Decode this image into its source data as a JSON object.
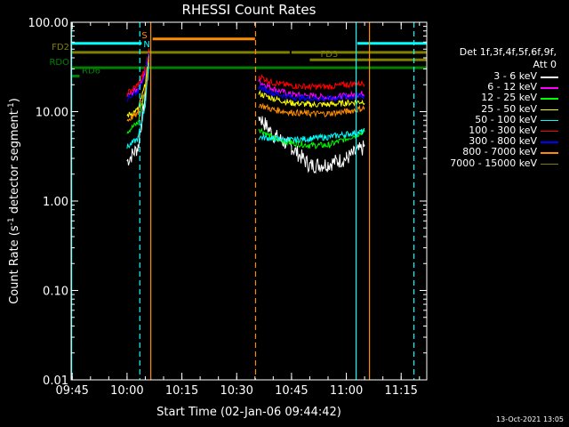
{
  "chart_data": {
    "type": "line",
    "title": "RHESSI Count Rates",
    "xlabel": "Start Time (02-Jan-06 09:44:42)",
    "ylabel_parts": [
      "Count Rate (s",
      "-1",
      " detector segment",
      "-1",
      ")"
    ],
    "yscale": "log",
    "ylim": [
      0.01,
      100
    ],
    "xlim": [
      "09:44:42",
      "11:22:00"
    ],
    "x_ticks": [
      "09:45",
      "10:00",
      "10:15",
      "10:30",
      "10:45",
      "11:00",
      "11:15"
    ],
    "y_ticks": [
      "0.01",
      "0.10",
      "1.00",
      "10.00",
      "100.00"
    ],
    "legend_header": [
      "Det 1f,3f,4f,5f,6f,9f,",
      "Att 0"
    ],
    "legend_position": "right",
    "series": [
      {
        "name": "3 - 6 keV",
        "color": "#ffffff",
        "x": [
          "10:00",
          "10:03",
          "10:05",
          "10:06",
          "10:36",
          "10:40",
          "10:45",
          "10:50",
          "10:55",
          "11:00",
          "11:05"
        ],
        "y": [
          2.8,
          4.0,
          15,
          40,
          9,
          5.5,
          4,
          2.5,
          2.6,
          3,
          4
        ]
      },
      {
        "name": "6 - 12 keV",
        "color": "#ff00ff",
        "x": [
          "10:00",
          "10:03",
          "10:05",
          "10:06",
          "10:36",
          "10:40",
          "10:45",
          "10:50",
          "10:55",
          "11:00",
          "11:05"
        ],
        "y": [
          15,
          18,
          28,
          45,
          22,
          18,
          15.5,
          15,
          14.5,
          15,
          16
        ]
      },
      {
        "name": "12 - 25 keV",
        "color": "#00ff00",
        "x": [
          "10:00",
          "10:03",
          "10:05",
          "10:06",
          "10:36",
          "10:40",
          "10:45",
          "10:50",
          "10:55",
          "11:00",
          "11:05"
        ],
        "y": [
          6,
          7.5,
          18,
          40,
          6.5,
          5,
          4.5,
          4.2,
          4.2,
          5,
          6
        ]
      },
      {
        "name": "25 - 50 keV",
        "color": "#ffff00",
        "x": [
          "10:00",
          "10:03",
          "10:05",
          "10:06",
          "10:36",
          "10:40",
          "10:45",
          "10:50",
          "10:55",
          "11:00",
          "11:05"
        ],
        "y": [
          9,
          10.5,
          20,
          42,
          16,
          14,
          12.5,
          12,
          12,
          12.5,
          13
        ]
      },
      {
        "name": "50 - 100 keV",
        "color": "#00ffff",
        "x": [
          "10:00",
          "10:03",
          "10:05",
          "10:06",
          "10:36",
          "10:40",
          "10:45",
          "10:50",
          "10:55",
          "11:00",
          "11:05"
        ],
        "y": [
          4,
          5,
          12,
          35,
          5.2,
          5,
          4.8,
          5,
          5.2,
          5.6,
          6
        ]
      },
      {
        "name": "100 - 300 keV",
        "color": "#ff0000",
        "x": [
          "10:00",
          "10:03",
          "10:05",
          "10:06",
          "10:36",
          "10:40",
          "10:45",
          "10:50",
          "10:55",
          "11:00",
          "11:05"
        ],
        "y": [
          16,
          20,
          30,
          48,
          25,
          21,
          19.5,
          19,
          19,
          20,
          21
        ]
      },
      {
        "name": "300 - 800 keV",
        "color": "#0000ff",
        "x": [
          "10:00",
          "10:03",
          "10:05",
          "10:06",
          "10:36",
          "10:40",
          "10:45",
          "10:50",
          "10:55",
          "11:00",
          "11:05"
        ],
        "y": [
          14,
          17,
          27,
          44,
          19,
          16,
          14.5,
          14,
          14,
          14.5,
          15
        ]
      },
      {
        "name": "800 - 7000 keV",
        "color": "#ff8c00",
        "x": [
          "10:00",
          "10:03",
          "10:05",
          "10:06",
          "10:36",
          "10:40",
          "10:45",
          "10:50",
          "10:55",
          "11:00",
          "11:05"
        ],
        "y": [
          8,
          9.5,
          18,
          40,
          12,
          10.5,
          9.8,
          9.5,
          9.5,
          10,
          11
        ]
      },
      {
        "name": "7000 - 15000 keV",
        "color": "#808000",
        "x": [],
        "y": []
      }
    ],
    "flags": [
      {
        "label": "FD2",
        "color": "#808000",
        "y": 46,
        "segments": [
          [
            "09:44:42",
            "10:44:30"
          ],
          [
            "10:45:00",
            "11:22:00"
          ]
        ],
        "label_side": "left"
      },
      {
        "label": "FD3",
        "color": "#808000",
        "y": 38,
        "segments": [
          [
            "10:50:00",
            "11:22:00"
          ]
        ],
        "label_side": "inside"
      },
      {
        "label": "RDO",
        "color": "#008000",
        "y": 31,
        "segments": [
          [
            "09:44:42",
            "11:22:00"
          ]
        ],
        "label_side": "left"
      },
      {
        "label": "RD6",
        "color": "#008000",
        "y": 25,
        "segments": [
          [
            "09:44:42",
            "09:47:00"
          ]
        ],
        "label_side": "inside"
      },
      {
        "label": "S",
        "color": "#ff8c00",
        "y": 65,
        "segments": [
          [
            "10:07:00",
            "10:35:00"
          ]
        ],
        "label_side": "left"
      },
      {
        "label": "N",
        "color": "#00ffff",
        "y": 58,
        "segments": [
          [
            "09:44:42",
            "10:04:00"
          ],
          [
            "11:03:00",
            "11:22:00"
          ]
        ],
        "label_side": "mid"
      }
    ],
    "markers": [
      {
        "time": "10:03:30",
        "color": "#00ffff",
        "style": "dashed"
      },
      {
        "time": "11:18:30",
        "color": "#00ffff",
        "style": "dashed"
      },
      {
        "time": "11:02:40",
        "color": "#00ffff",
        "style": "solid"
      },
      {
        "time": "09:44:50",
        "color": "#00ffff",
        "style": "solid"
      },
      {
        "time": "10:06:30",
        "color": "#ff8c00",
        "style": "solid"
      },
      {
        "time": "10:35:10",
        "color": "#ff8c00",
        "style": "dashed"
      },
      {
        "time": "11:06:20",
        "color": "#ff8c00",
        "style": "solid"
      }
    ]
  },
  "footer_stamp": "13-Oct-2021 13:05"
}
